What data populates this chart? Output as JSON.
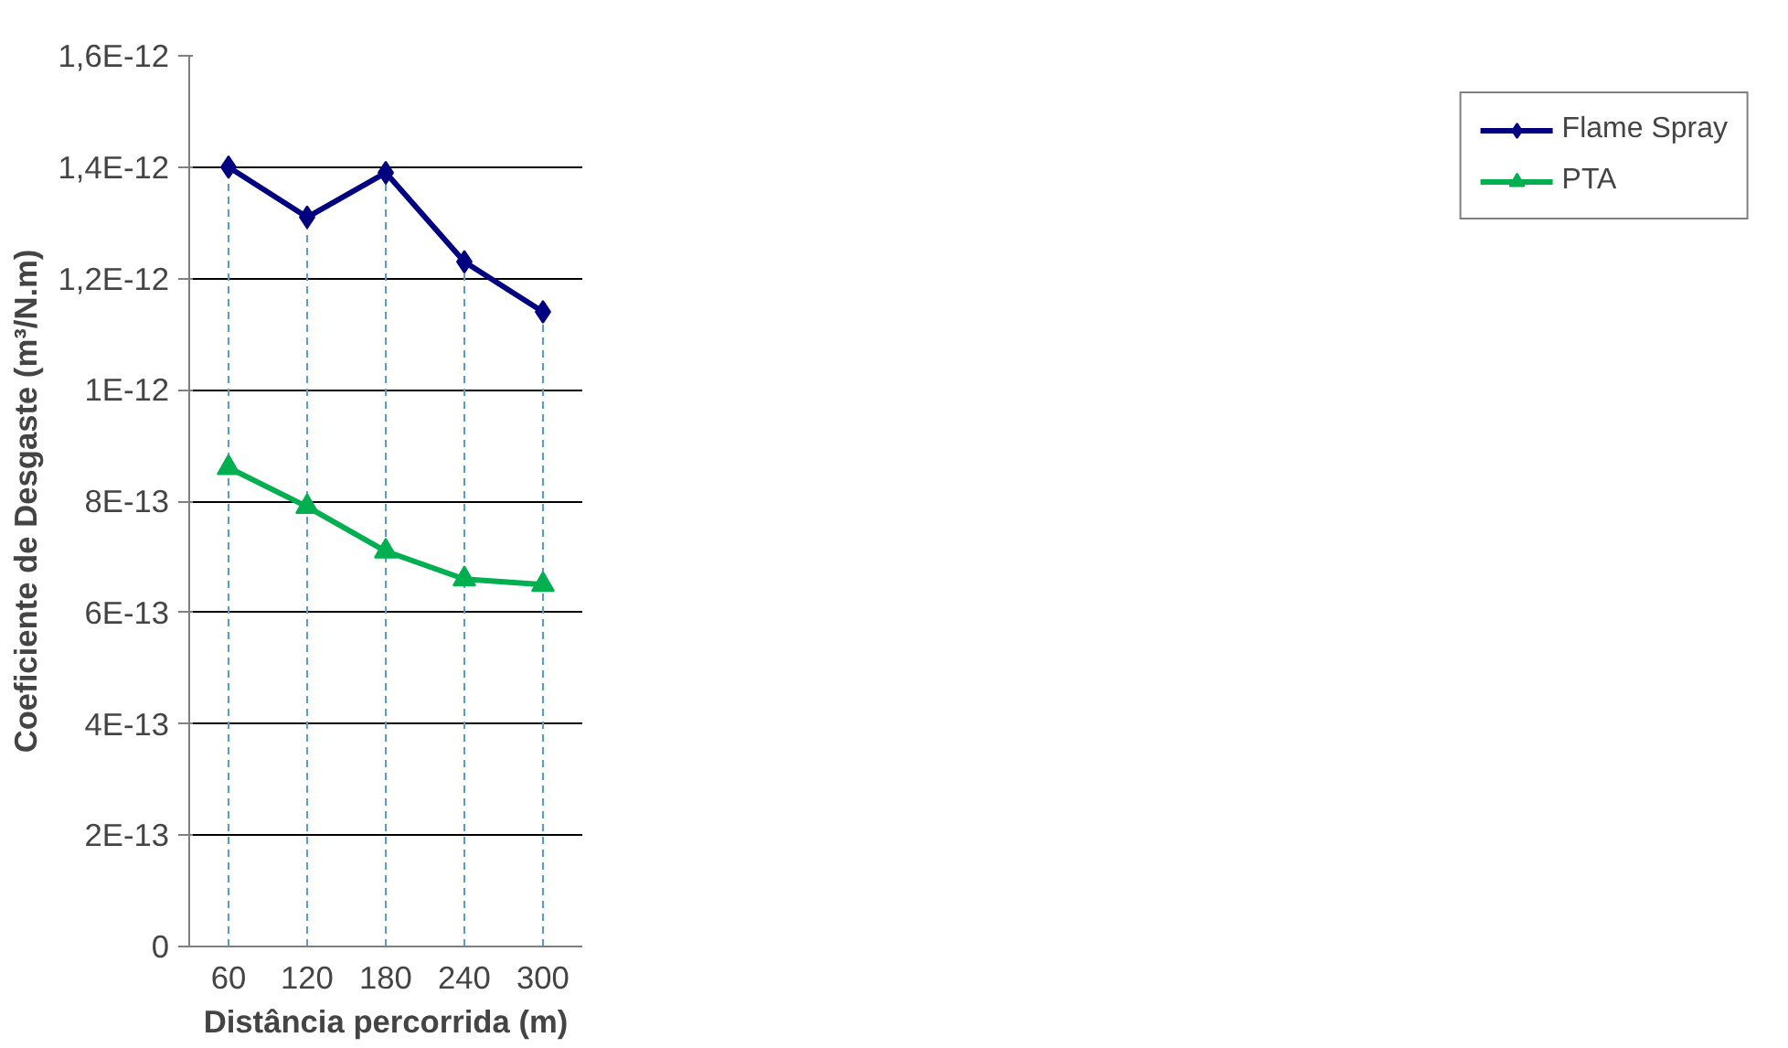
{
  "chart_data": {
    "type": "line",
    "xlabel": "Distância percorrida (m)",
    "ylabel": "Coeficiente de Desgaste (m³/N.m)",
    "categories": [
      "60",
      "120",
      "180",
      "240",
      "300"
    ],
    "series": [
      {
        "name": "Flame Spray",
        "color": "#000080",
        "marker": "diamond",
        "values": [
          1.4e-12,
          1.31e-12,
          1.39e-12,
          1.23e-12,
          1.14e-12
        ]
      },
      {
        "name": "PTA",
        "color": "#00b050",
        "marker": "triangle",
        "values": [
          8.6e-13,
          7.9e-13,
          7.1e-13,
          6.6e-13,
          6.5e-13
        ]
      }
    ],
    "ylim": [
      0,
      1.6e-12
    ],
    "yticks": [
      0,
      {
        "value": 2e-13,
        "label": "2E-13"
      },
      {
        "value": 4e-13,
        "label": "4E-13"
      },
      {
        "value": 6e-13,
        "label": "6E-13"
      },
      {
        "value": 8e-13,
        "label": "8E-13"
      },
      {
        "value": 1e-12,
        "label": "1E-12"
      },
      {
        "value": 1.2e-12,
        "label": "1,2E-12"
      },
      {
        "value": 1.4e-12,
        "label": "1,4E-12"
      },
      {
        "value": 1.6e-12,
        "label": "1,6E-12"
      }
    ],
    "ref_lines": [
      {
        "axis": "x",
        "value": "60",
        "color": "#5b9bd5",
        "line_style": "dashed"
      },
      {
        "axis": "x",
        "value": "120",
        "color": "#5b9bd5",
        "line_style": "dashed"
      },
      {
        "axis": "x",
        "value": "180",
        "color": "#5b9bd5",
        "line_style": "dashed"
      },
      {
        "axis": "x",
        "value": "240",
        "color": "#5b9bd5",
        "line_style": "dashed"
      },
      {
        "axis": "x",
        "value": "300",
        "color": "#5b9bd5",
        "line_style": "dashed"
      }
    ],
    "grid": "y",
    "legend": "right",
    "line_style": "solid"
  }
}
